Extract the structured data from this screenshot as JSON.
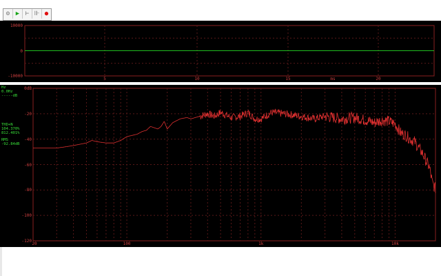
{
  "toolbar": {
    "buttons": [
      {
        "name": "signal-settings-button",
        "icon": "gear-icon",
        "glyph": "⚙"
      },
      {
        "name": "play-button",
        "icon": "play-icon",
        "glyph": "▶",
        "color": "#19a519"
      },
      {
        "name": "step-button",
        "icon": "step-icon",
        "glyph": "⊢"
      },
      {
        "name": "fast-forward-button",
        "icon": "fast-forward-icon",
        "glyph": "⊪"
      },
      {
        "name": "record-button",
        "icon": "record-icon",
        "glyph": "●",
        "color": "#e01010"
      }
    ]
  },
  "oscilloscope": {
    "y_ticks": [
      "10000",
      "0",
      "-10000"
    ],
    "x_ticks": [
      "5",
      "10",
      "15",
      "ms",
      "20"
    ],
    "trace_color": "#20c020"
  },
  "spectrum": {
    "y_ticks": [
      "0dB",
      "-20",
      "-40",
      "-60",
      "-80",
      "-100",
      "-120"
    ],
    "x_ticks": [
      "20",
      "100",
      "1k",
      "10k"
    ],
    "trace_color": "#e03030",
    "readouts": {
      "cursor_freq_label": "Hz",
      "cursor_freq_value": "0.0Hz",
      "cursor_level_value": "-----dB",
      "thd_label": "THD+N",
      "thd_value_1": "104.370%",
      "thd_value_2": "812.401%",
      "rms_label": "RMS",
      "rms_value": "-92.84dB"
    }
  },
  "chart_data": {
    "type": "line",
    "xscale": "log",
    "xlim": [
      20,
      20000
    ],
    "ylim": [
      -120,
      0
    ],
    "x": [
      20,
      25,
      30,
      35,
      40,
      50,
      55,
      60,
      70,
      80,
      90,
      100,
      110,
      120,
      130,
      140,
      150,
      160,
      170,
      180,
      190,
      200,
      220,
      250,
      280,
      300,
      350,
      400,
      450,
      500,
      600,
      700,
      800,
      900,
      1000,
      1200,
      1500,
      2000,
      2500,
      3000,
      4000,
      5000,
      6000,
      7000,
      8000,
      9000,
      10000,
      11000,
      12000,
      13000,
      14000,
      15000,
      16000,
      17000,
      18000,
      19000,
      20000
    ],
    "y": [
      -47,
      -47,
      -47,
      -46,
      -45,
      -43,
      -41,
      -42,
      -43,
      -43,
      -41,
      -38,
      -37,
      -36,
      -34,
      -33,
      -30,
      -31,
      -32,
      -30,
      -26,
      -32,
      -27,
      -24,
      -23,
      -24,
      -22,
      -20,
      -22,
      -19,
      -23,
      -22,
      -19,
      -24,
      -24,
      -19,
      -20,
      -22,
      -24,
      -22,
      -24,
      -23,
      -25,
      -27,
      -25,
      -26,
      -28,
      -35,
      -37,
      -40,
      -42,
      -47,
      -51,
      -57,
      -62,
      -75,
      -79
    ]
  }
}
